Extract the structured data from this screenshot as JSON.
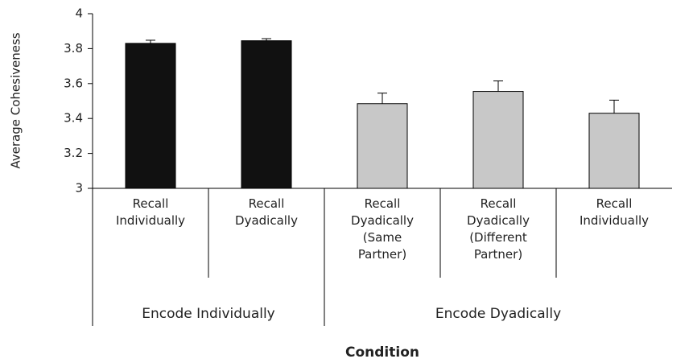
{
  "chart_data": {
    "type": "bar",
    "ylabel": "Average Cohesiveness",
    "xlabel": "Condition",
    "ylim": [
      3,
      4
    ],
    "yticks": [
      3,
      3.2,
      3.4,
      3.6,
      3.8,
      4
    ],
    "groups": [
      {
        "label": "Encode Individually",
        "color": "#111111",
        "categories": [
          "Recall Individually",
          "Recall Dyadically"
        ],
        "values": [
          3.83,
          3.845
        ],
        "errors": [
          0.018,
          0.012
        ]
      },
      {
        "label": "Encode Dyadically",
        "color": "#c8c8c8",
        "categories": [
          "Recall Dyadically (Same Partner)",
          "Recall Dyadically (Different Partner)",
          "Recall Individually"
        ],
        "values": [
          3.485,
          3.555,
          3.43
        ],
        "errors": [
          0.06,
          0.06,
          0.075
        ]
      }
    ]
  }
}
